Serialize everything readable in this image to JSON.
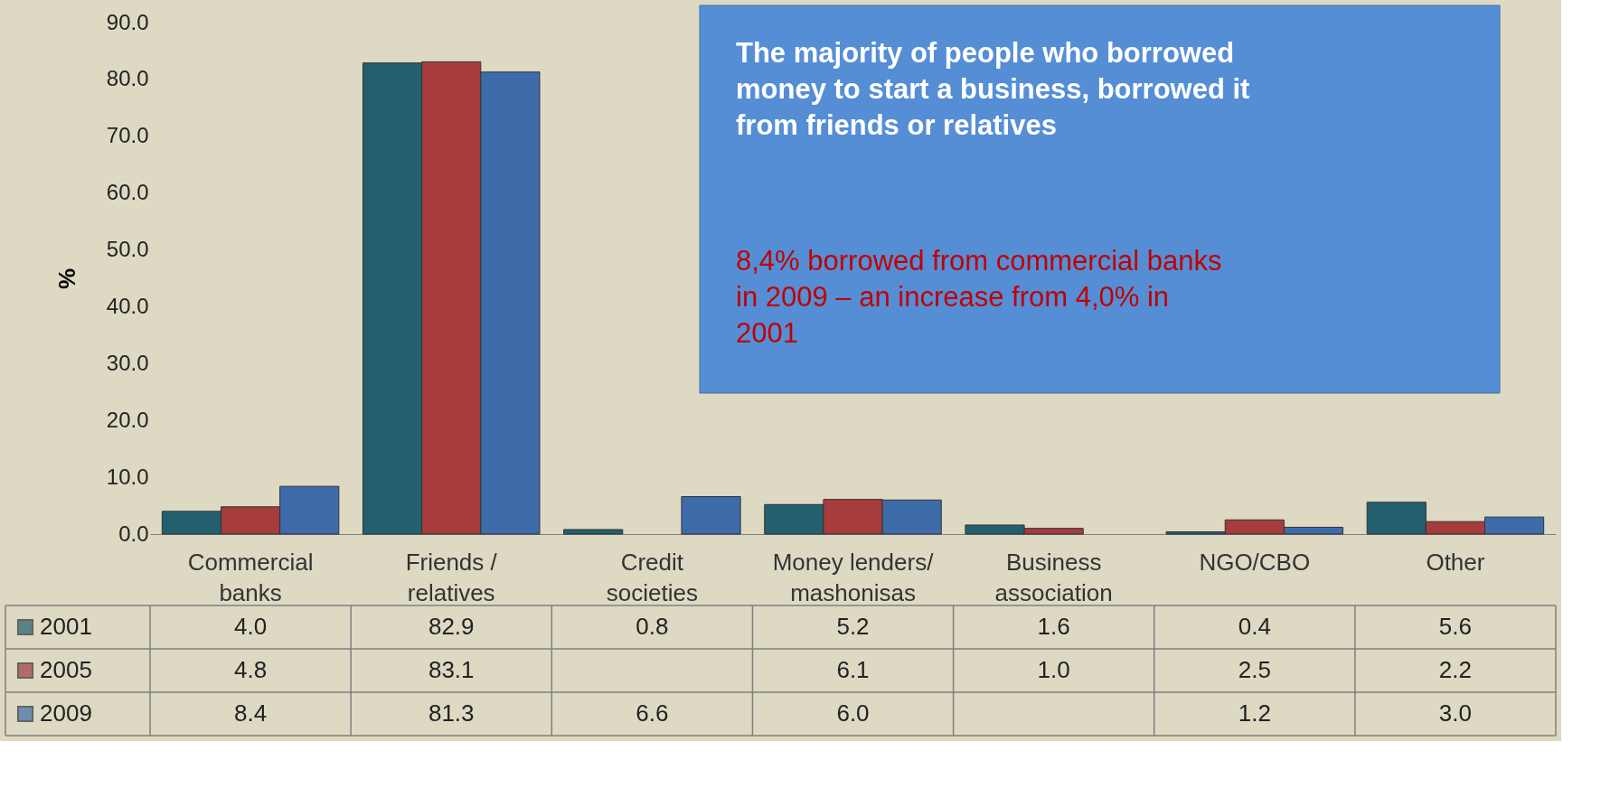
{
  "chart_data": {
    "type": "bar",
    "ylabel": "%",
    "categories": [
      "Commercial banks",
      "Friends / relatives",
      "Credit societies",
      "Money lenders/ mashonisas",
      "Business association",
      "NGO/CBO",
      "Other"
    ],
    "series": [
      {
        "name": "2001",
        "color": "#23606e",
        "values": [
          4.0,
          82.9,
          0.8,
          5.2,
          1.6,
          0.4,
          5.6
        ],
        "value_labels": [
          "4.0",
          "82.9",
          "0.8",
          "5.2",
          "1.6",
          "0.4",
          "5.6"
        ]
      },
      {
        "name": "2005",
        "color": "#a63c3c",
        "values": [
          4.8,
          83.1,
          null,
          6.1,
          1.0,
          2.5,
          2.2
        ],
        "value_labels": [
          "4.8",
          "83.1",
          null,
          "6.1",
          "1.0",
          "2.5",
          "2.2"
        ]
      },
      {
        "name": "2009",
        "color": "#3e6cab",
        "values": [
          8.4,
          81.3,
          6.6,
          6.0,
          null,
          1.2,
          3.0
        ],
        "value_labels": [
          "8.4",
          "81.3",
          "6.6",
          "6.0",
          null,
          "1.2",
          "3.0"
        ]
      }
    ],
    "ylim": [
      0,
      90
    ],
    "yticks": [
      {
        "value": 0,
        "label": "0.0"
      },
      {
        "value": 10,
        "label": "10.0"
      },
      {
        "value": 20,
        "label": "20.0"
      },
      {
        "value": 30,
        "label": "30.0"
      },
      {
        "value": 40,
        "label": "40.0"
      },
      {
        "value": 50,
        "label": "50.0"
      },
      {
        "value": 60,
        "label": "60.0"
      },
      {
        "value": 70,
        "label": "70.0"
      },
      {
        "value": 80,
        "label": "80.0"
      },
      {
        "value": 90,
        "label": "90.0"
      }
    ],
    "grid": false,
    "legend": "bottom left",
    "annotations": [
      "The majority of people who borrowed money to start a business, borrowed it from friends or relatives",
      "8,4% borrowed from commercial banks in 2009 – an increase from 4,0% in 2001"
    ]
  }
}
